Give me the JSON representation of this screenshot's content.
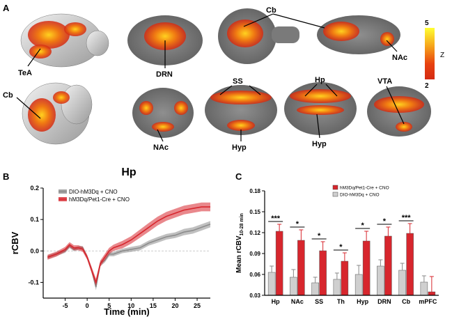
{
  "panels": {
    "a": {
      "letter": "A"
    },
    "b": {
      "letter": "B"
    },
    "c": {
      "letter": "C"
    }
  },
  "panel_a": {
    "labels": {
      "tea": "TeA",
      "cb_left": "Cb",
      "drn": "DRN",
      "cb_top": "Cb",
      "nac_right": "NAc",
      "nac_bottom": "NAc",
      "ss": "SS",
      "hyp_mid": "Hyp",
      "hp": "Hp",
      "hyp_right": "Hyp",
      "vta": "VTA"
    },
    "colorbar": {
      "max": "5",
      "min": "2",
      "label": "Z",
      "colors": [
        "#ffff33",
        "#f6a51b",
        "#e8420f",
        "#d42a13"
      ]
    }
  },
  "chart_data": [
    {
      "type": "line",
      "title": "Hp",
      "xlabel": "Time (min)",
      "ylabel": "rCBV",
      "xlim": [
        -10,
        28
      ],
      "ylim": [
        -0.15,
        0.2
      ],
      "xticks": [
        "-5",
        "0",
        "5",
        "10",
        "15",
        "20",
        "25"
      ],
      "yticks": [
        "-0.1",
        "0.0",
        "0.1",
        "0.2"
      ],
      "legend": "top-left",
      "series": [
        {
          "name": "DIO-hM3Dq + CNO",
          "color": "#8c8c8c",
          "x": [
            -9,
            -7,
            -5,
            -4,
            -3,
            -2,
            -1,
            0,
            1,
            2,
            3,
            4,
            5,
            6,
            8,
            10,
            12,
            14,
            16,
            18,
            20,
            22,
            24,
            26,
            28
          ],
          "y": [
            -0.02,
            -0.01,
            0.0,
            0.015,
            0.005,
            0.01,
            0.01,
            -0.02,
            -0.06,
            -0.115,
            -0.04,
            -0.03,
            -0.01,
            -0.01,
            0.0,
            0.005,
            0.01,
            0.025,
            0.035,
            0.045,
            0.05,
            0.06,
            0.065,
            0.075,
            0.085
          ],
          "err": [
            0.006,
            0.006,
            0.006,
            0.006,
            0.006,
            0.006,
            0.006,
            0.006,
            0.008,
            0.01,
            0.008,
            0.007,
            0.007,
            0.007,
            0.007,
            0.008,
            0.008,
            0.008,
            0.009,
            0.009,
            0.009,
            0.01,
            0.01,
            0.01,
            0.01
          ]
        },
        {
          "name": "hM3Dq/Pet1-Cre + CNO",
          "color": "#d7262d",
          "x": [
            -9,
            -7,
            -5,
            -4,
            -3,
            -2,
            -1,
            0,
            1,
            2,
            3,
            4,
            5,
            6,
            8,
            10,
            12,
            14,
            16,
            18,
            20,
            22,
            24,
            26,
            28
          ],
          "y": [
            -0.02,
            -0.01,
            0.005,
            0.02,
            0.01,
            0.01,
            0.005,
            -0.02,
            -0.06,
            -0.1,
            -0.04,
            -0.02,
            0.0,
            0.01,
            0.02,
            0.035,
            0.055,
            0.075,
            0.095,
            0.11,
            0.12,
            0.13,
            0.135,
            0.14,
            0.14
          ],
          "err": [
            0.008,
            0.008,
            0.008,
            0.008,
            0.008,
            0.008,
            0.008,
            0.008,
            0.01,
            0.012,
            0.01,
            0.01,
            0.01,
            0.01,
            0.012,
            0.012,
            0.013,
            0.014,
            0.014,
            0.014,
            0.014,
            0.014,
            0.014,
            0.014,
            0.014
          ]
        }
      ]
    },
    {
      "type": "bar",
      "title": "",
      "xlabel": "",
      "ylabel": "Mean rCBV",
      "ylabel_sub": "10-28 min",
      "ylim": [
        0.03,
        0.18
      ],
      "yticks": [
        "0.03",
        "0.06",
        "0.09",
        "0.12",
        "0.15",
        "0.18"
      ],
      "categories": [
        "Hp",
        "NAc",
        "SS",
        "Th",
        "Hyp",
        "DRN",
        "Cb",
        "mPFC"
      ],
      "legend": "top-right",
      "series": [
        {
          "name": "hM3Dq/Pet1-Cre + CNO",
          "color": "#d7262d",
          "values": [
            0.122,
            0.109,
            0.094,
            0.079,
            0.108,
            0.115,
            0.119,
            0.035
          ],
          "err": [
            0.01,
            0.015,
            0.013,
            0.012,
            0.014,
            0.013,
            0.014,
            0.022
          ]
        },
        {
          "name": "DIO-hM3Dq + CNO",
          "color": "#cfcfcf",
          "values": [
            0.063,
            0.056,
            0.048,
            0.053,
            0.06,
            0.072,
            0.066,
            0.049
          ],
          "err": [
            0.009,
            0.011,
            0.008,
            0.009,
            0.013,
            0.009,
            0.01,
            0.009
          ]
        }
      ],
      "significance": [
        "***",
        "*",
        "*",
        "*",
        "*",
        "*",
        "***",
        ""
      ]
    }
  ]
}
